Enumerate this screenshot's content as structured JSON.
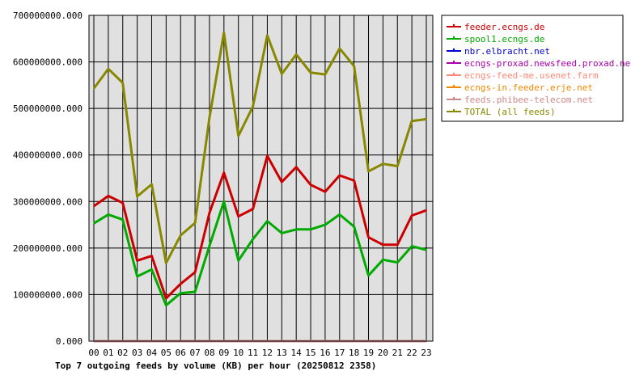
{
  "chart_data": {
    "type": "line",
    "title": "Top 7 outgoing feeds by volume (KB) per hour (20250812 2358)",
    "categories": [
      "00",
      "01",
      "02",
      "03",
      "04",
      "05",
      "06",
      "07",
      "08",
      "09",
      "10",
      "11",
      "12",
      "13",
      "14",
      "15",
      "16",
      "17",
      "18",
      "19",
      "20",
      "21",
      "22",
      "23"
    ],
    "ylim": [
      0,
      700000000
    ],
    "yticks": [
      0,
      100000000,
      200000000,
      300000000,
      400000000,
      500000000,
      600000000,
      700000000
    ],
    "ytick_labels": [
      "0.000",
      "100000000.000",
      "200000000.000",
      "300000000.000",
      "400000000.000",
      "500000000.000",
      "600000000.000",
      "700000000.000"
    ],
    "grid": true,
    "legend_position": "right",
    "plot_background": "#e0e0e0",
    "series": [
      {
        "name": "feeder.ecngs.de",
        "color": "#cc0000",
        "values": [
          290000000,
          312000000,
          297000000,
          173000000,
          183000000,
          92000000,
          123000000,
          148000000,
          276000000,
          362000000,
          268000000,
          284000000,
          398000000,
          342000000,
          374000000,
          336000000,
          321000000,
          356000000,
          345000000,
          223000000,
          207000000,
          207000000,
          270000000,
          281000000
        ]
      },
      {
        "name": "spool1.ecngs.de",
        "color": "#00aa00",
        "values": [
          253000000,
          272000000,
          261000000,
          139000000,
          154000000,
          77000000,
          103000000,
          106000000,
          205000000,
          300000000,
          173000000,
          219000000,
          258000000,
          232000000,
          240000000,
          240000000,
          250000000,
          272000000,
          246000000,
          141000000,
          175000000,
          169000000,
          204000000,
          196000000
        ]
      },
      {
        "name": "nbr.elbracht.net",
        "color": "#0000cc",
        "values": [
          0,
          0,
          0,
          0,
          0,
          0,
          0,
          0,
          0,
          0,
          0,
          0,
          0,
          0,
          0,
          0,
          0,
          0,
          0,
          0,
          0,
          0,
          0,
          0
        ]
      },
      {
        "name": "ecngs-proxad.newsfeed.proxad.net",
        "color": "#aa00aa",
        "values": [
          0,
          0,
          0,
          0,
          0,
          0,
          0,
          0,
          0,
          0,
          0,
          0,
          0,
          0,
          0,
          0,
          0,
          0,
          0,
          0,
          0,
          0,
          0,
          0
        ]
      },
      {
        "name": "ecngs-feed-me.usenet.farm",
        "color": "#ff8877",
        "values": [
          0,
          0,
          0,
          0,
          0,
          0,
          0,
          0,
          0,
          0,
          0,
          0,
          0,
          0,
          0,
          0,
          0,
          0,
          0,
          0,
          0,
          0,
          0,
          0
        ]
      },
      {
        "name": "ecngs-in.feeder.erje.net",
        "color": "#ee8800",
        "values": [
          0,
          0,
          0,
          0,
          0,
          0,
          0,
          0,
          0,
          0,
          0,
          0,
          0,
          0,
          0,
          0,
          0,
          0,
          0,
          0,
          0,
          0,
          0,
          0
        ]
      },
      {
        "name": "feeds.phibee-telecom.net",
        "color": "#cc8888",
        "values": [
          0,
          0,
          0,
          0,
          0,
          0,
          0,
          0,
          0,
          0,
          0,
          0,
          0,
          0,
          0,
          0,
          0,
          0,
          0,
          0,
          0,
          0,
          0,
          0
        ]
      },
      {
        "name": "TOTAL (all feeds)",
        "color": "#888800",
        "values": [
          543000000,
          585000000,
          555000000,
          311000000,
          337000000,
          168000000,
          227000000,
          254000000,
          481000000,
          663000000,
          441000000,
          504000000,
          657000000,
          574000000,
          616000000,
          577000000,
          573000000,
          629000000,
          591000000,
          365000000,
          381000000,
          376000000,
          473000000,
          477000000
        ]
      }
    ]
  }
}
